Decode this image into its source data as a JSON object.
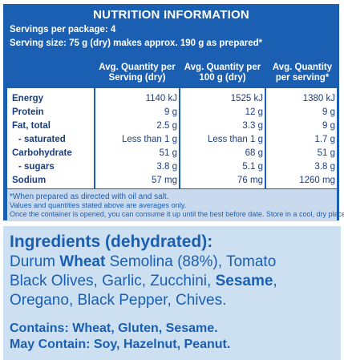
{
  "nutrition": {
    "title": "NUTRITION INFORMATION",
    "servings_per_package": "Servings per package: 4",
    "serving_size": "Serving size: 75 g (dry) makes approx. 190 g as prepared*",
    "columns": [
      "Avg. Quantity per Serving (dry)",
      "Avg. Quantity per 100 g (dry)",
      "Avg. Quantity per serving*"
    ],
    "rows": [
      {
        "name": "Energy",
        "v": [
          "1140 kJ",
          "1525 kJ",
          "1380 kJ"
        ]
      },
      {
        "name": "Protein",
        "v": [
          "9 g",
          "12 g",
          "9 g"
        ]
      },
      {
        "name": "Fat, total",
        "v": [
          "2.5 g",
          "3.3 g",
          "9 g"
        ]
      },
      {
        "name": "- saturated",
        "v": [
          "Less than 1 g",
          "Less than 1 g",
          "1.7 g"
        ]
      },
      {
        "name": "Carbohydrate",
        "v": [
          "51 g",
          "68 g",
          "51 g"
        ]
      },
      {
        "name": "- sugars",
        "v": [
          "3.8 g",
          "5.1 g",
          "3.8 g"
        ]
      },
      {
        "name": "Sodium",
        "v": [
          "57 mg",
          "76 mg",
          "1260 mg"
        ]
      }
    ],
    "footnotes": [
      "*When prepared as directed with oil and salt.",
      "Values and quantities stated above are averages only.",
      "Once the container is opened, you can consume it up until the best before date. Store in a cool, dry place."
    ]
  },
  "ingredients": {
    "title": "Ingredients (dehydrated):",
    "line1_a": "Durum ",
    "line1_b": "Wheat",
    "line1_c": " Semolina (88%), Tomato",
    "line2_a": "Black Olives, Garlic, Zucchini, ",
    "line2_b": "Sesame",
    "line2_c": ",",
    "line3": "Oregano, Black Pepper, Chives.",
    "contains": "Contains: Wheat, Gluten, Sesame.",
    "may_contain": "May Contain: Soy, Hazelnut, Peanut."
  },
  "colors": {
    "brand_blue": "#1b5fb2",
    "light_blue": "#cde0f2"
  }
}
